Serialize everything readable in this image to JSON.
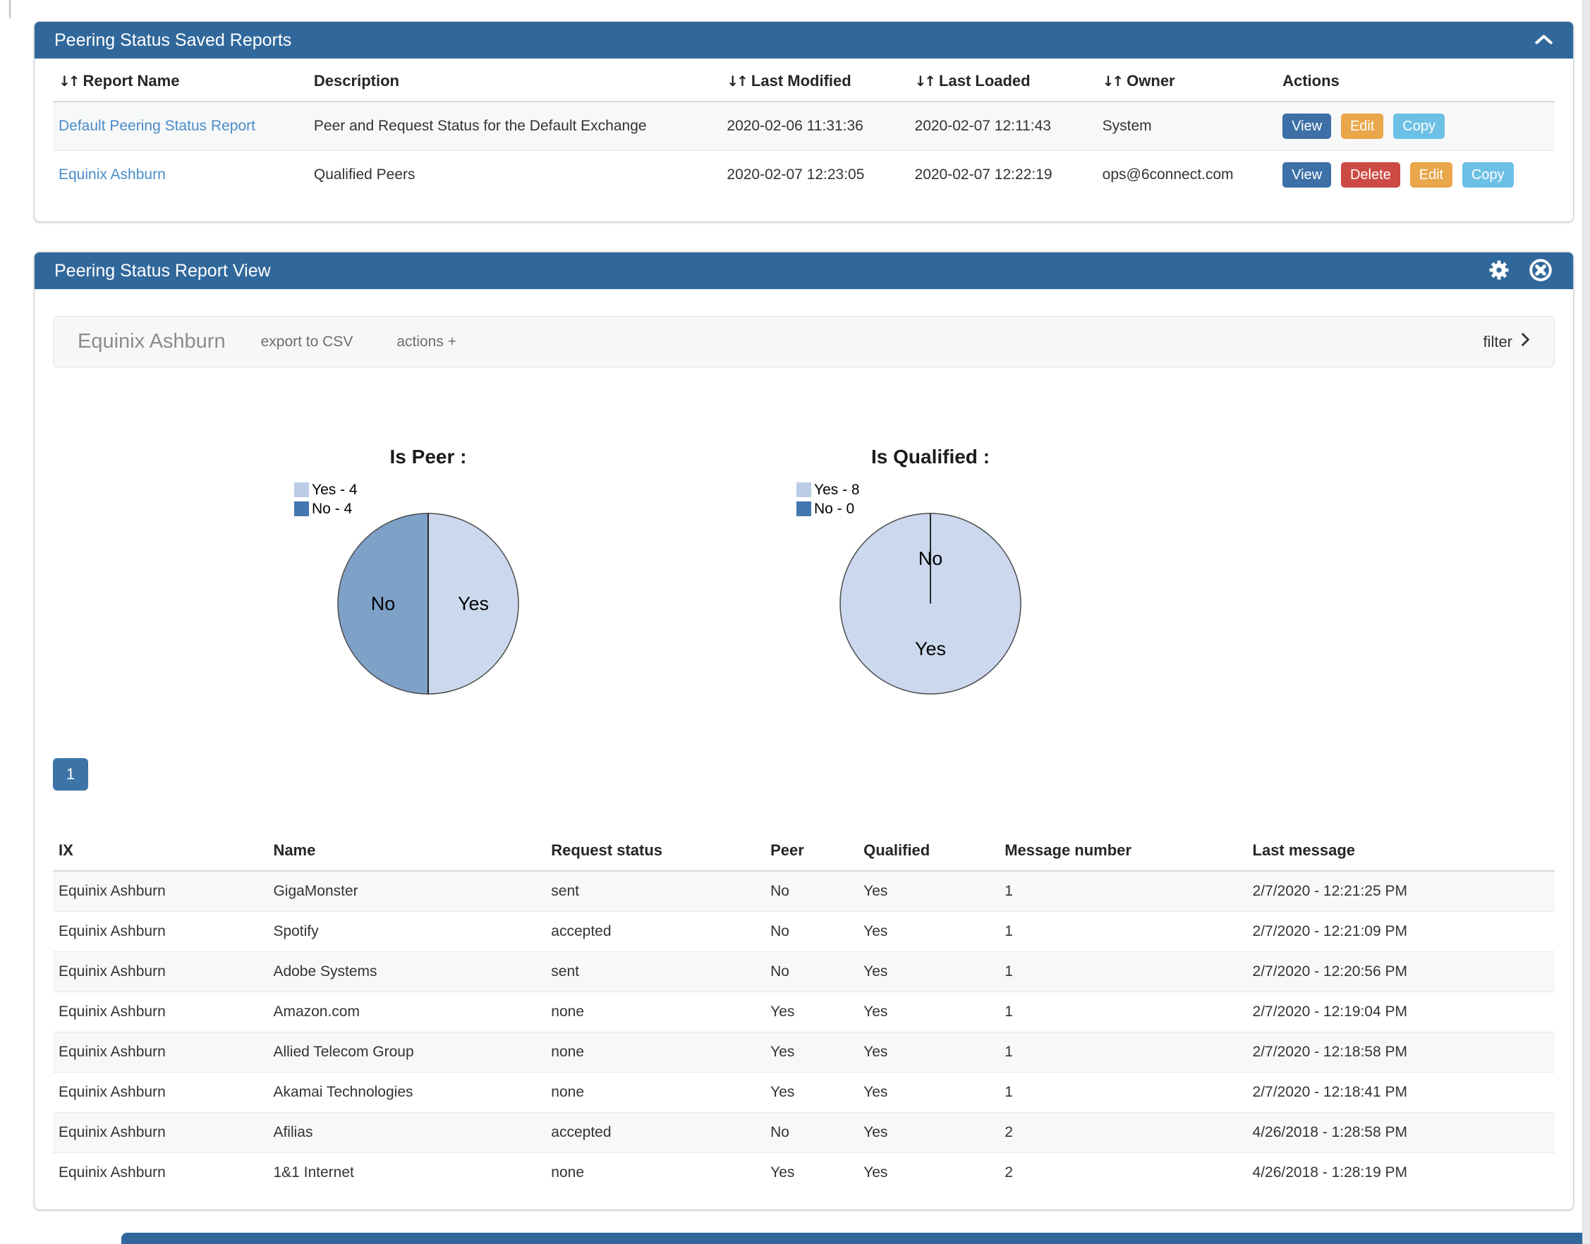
{
  "colors": {
    "panel_header_bg": "#31689b",
    "link": "#4a8cc9",
    "button_view": "#3c70a6",
    "button_edit": "#e9a64a",
    "button_copy": "#6cc0e5",
    "button_delete": "#cd4a44",
    "pagination_bg": "#3d74a8"
  },
  "icons": {
    "sort": "↓↑"
  },
  "saved_reports": {
    "title": "Peering Status Saved Reports",
    "columns": [
      {
        "label": "Report Name",
        "sortable": true
      },
      {
        "label": "Description",
        "sortable": false
      },
      {
        "label": "Last Modified",
        "sortable": true
      },
      {
        "label": "Last Loaded",
        "sortable": true
      },
      {
        "label": "Owner",
        "sortable": true
      },
      {
        "label": "Actions",
        "sortable": false
      }
    ],
    "rows": [
      {
        "name": "Default Peering Status Report",
        "description": "Peer and Request Status for the Default Exchange",
        "last_modified": "2020-02-06 11:31:36",
        "last_loaded": "2020-02-07 12:11:43",
        "owner": "System",
        "actions": [
          "View",
          "Edit",
          "Copy"
        ]
      },
      {
        "name": "Equinix Ashburn",
        "description": "Qualified Peers",
        "last_modified": "2020-02-07 12:23:05",
        "last_loaded": "2020-02-07 12:22:19",
        "owner": "ops@6connect.com",
        "actions": [
          "View",
          "Delete",
          "Edit",
          "Copy"
        ]
      }
    ]
  },
  "report_view": {
    "title": "Peering Status Report View",
    "toolbar": {
      "report_name": "Equinix Ashburn",
      "export_csv": "export to CSV",
      "actions": "actions +",
      "filter": "filter"
    },
    "pagination": {
      "page": "1"
    },
    "table": {
      "columns": [
        "IX",
        "Name",
        "Request status",
        "Peer",
        "Qualified",
        "Message number",
        "Last message"
      ],
      "rows": [
        {
          "ix": "Equinix Ashburn",
          "name": "GigaMonster",
          "request_status": "sent",
          "peer": "No",
          "qualified": "Yes",
          "message_number": "1",
          "last_message": "2/7/2020 - 12:21:25 PM"
        },
        {
          "ix": "Equinix Ashburn",
          "name": "Spotify",
          "request_status": "accepted",
          "peer": "No",
          "qualified": "Yes",
          "message_number": "1",
          "last_message": "2/7/2020 - 12:21:09 PM"
        },
        {
          "ix": "Equinix Ashburn",
          "name": "Adobe Systems",
          "request_status": "sent",
          "peer": "No",
          "qualified": "Yes",
          "message_number": "1",
          "last_message": "2/7/2020 - 12:20:56 PM"
        },
        {
          "ix": "Equinix Ashburn",
          "name": "Amazon.com",
          "request_status": "none",
          "peer": "Yes",
          "qualified": "Yes",
          "message_number": "1",
          "last_message": "2/7/2020 - 12:19:04 PM"
        },
        {
          "ix": "Equinix Ashburn",
          "name": "Allied Telecom Group",
          "request_status": "none",
          "peer": "Yes",
          "qualified": "Yes",
          "message_number": "1",
          "last_message": "2/7/2020 - 12:18:58 PM"
        },
        {
          "ix": "Equinix Ashburn",
          "name": "Akamai Technologies",
          "request_status": "none",
          "peer": "Yes",
          "qualified": "Yes",
          "message_number": "1",
          "last_message": "2/7/2020 - 12:18:41 PM"
        },
        {
          "ix": "Equinix Ashburn",
          "name": "Afilias",
          "request_status": "accepted",
          "peer": "No",
          "qualified": "Yes",
          "message_number": "2",
          "last_message": "4/26/2018 - 1:28:58 PM"
        },
        {
          "ix": "Equinix Ashburn",
          "name": "1&1 Internet",
          "request_status": "none",
          "peer": "Yes",
          "qualified": "Yes",
          "message_number": "2",
          "last_message": "4/26/2018 - 1:28:19 PM"
        }
      ]
    }
  },
  "chart_data": [
    {
      "type": "pie",
      "title": "Is Peer :",
      "labels": [
        "Yes",
        "No"
      ],
      "values": [
        4,
        4
      ],
      "legend": [
        "Yes - 4",
        "No - 4"
      ],
      "slice_colors": [
        "#cbd8ed",
        "#7ea1c8"
      ],
      "legend_colors": [
        "#bccce6",
        "#4377af"
      ],
      "legend_position": "top-left",
      "start_angle": "top",
      "direction": "clockwise"
    },
    {
      "type": "pie",
      "title": "Is Qualified :",
      "labels": [
        "Yes",
        "No"
      ],
      "values": [
        8,
        0
      ],
      "legend": [
        "Yes - 8",
        "No - 0"
      ],
      "slice_colors": [
        "#cbd8ed",
        "#7ea1c8"
      ],
      "legend_colors": [
        "#bccce6",
        "#4377af"
      ],
      "legend_position": "top-left",
      "start_angle": "top",
      "direction": "clockwise"
    }
  ]
}
